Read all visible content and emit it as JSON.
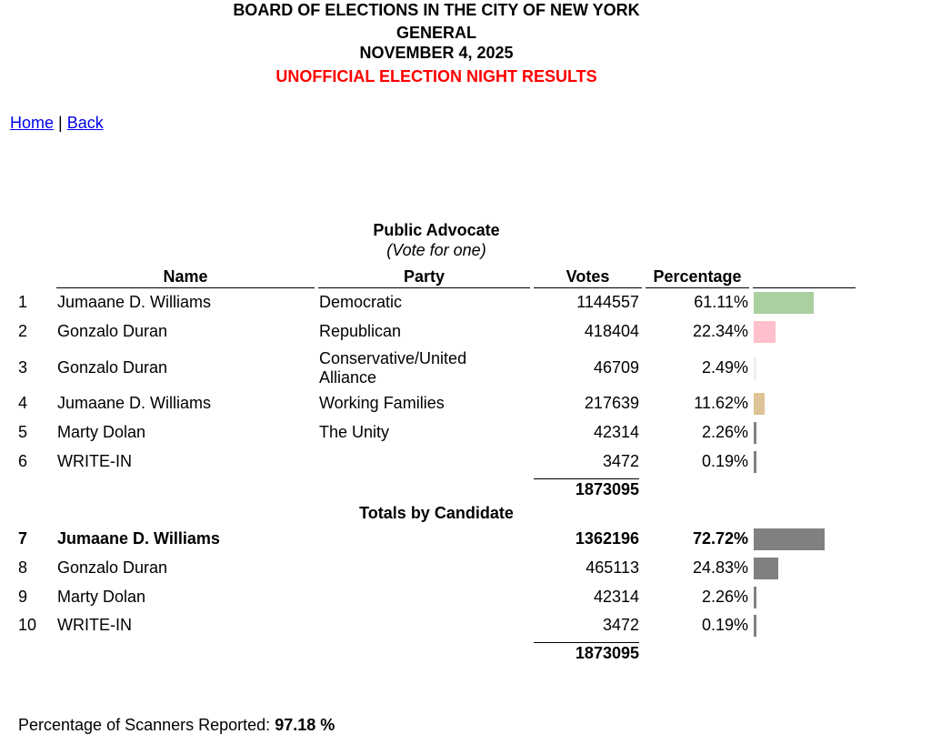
{
  "header": {
    "line1": "BOARD OF ELECTIONS IN THE CITY OF NEW YORK",
    "line2": "GENERAL",
    "line3": "NOVEMBER 4, 2025",
    "line4": "UNOFFICIAL ELECTION NIGHT RESULTS",
    "warning_color": "#ff0000"
  },
  "nav": {
    "home": "Home",
    "separator": "|",
    "back": "Back"
  },
  "contest": {
    "title": "Public Advocate",
    "subtitle": "(Vote for one)",
    "columns": {
      "name": "Name",
      "party": "Party",
      "votes": "Votes",
      "percentage": "Percentage"
    },
    "rows": [
      {
        "num": "1",
        "name": "Jumaane D. Williams",
        "party": "Democratic",
        "votes": "1144557",
        "pct": "61.11%",
        "pct_value": 61.11,
        "bar_color": "#a9d09e"
      },
      {
        "num": "2",
        "name": "Gonzalo Duran",
        "party": "Republican",
        "votes": "418404",
        "pct": "22.34%",
        "pct_value": 22.34,
        "bar_color": "#ffc0cb"
      },
      {
        "num": "3",
        "name": "Gonzalo Duran",
        "party": "Conservative/United Alliance",
        "votes": "46709",
        "pct": "2.49%",
        "pct_value": 2.49,
        "bar_color": "#eeeeee"
      },
      {
        "num": "4",
        "name": "Jumaane D. Williams",
        "party": "Working Families",
        "votes": "217639",
        "pct": "11.62%",
        "pct_value": 11.62,
        "bar_color": "#dec396"
      },
      {
        "num": "5",
        "name": "Marty Dolan",
        "party": "The Unity",
        "votes": "42314",
        "pct": "2.26%",
        "pct_value": 2.26,
        "bar_color": "#808080"
      },
      {
        "num": "6",
        "name": "WRITE-IN",
        "party": "",
        "votes": "3472",
        "pct": "0.19%",
        "pct_value": 0.19,
        "bar_color": "#808080"
      }
    ],
    "total": "1873095",
    "totals_title": "Totals by Candidate",
    "totals_rows": [
      {
        "num": "7",
        "name": "Jumaane D. Williams",
        "votes": "1362196",
        "pct": "72.72%",
        "pct_value": 72.72,
        "bar_color": "#808080",
        "bold": true
      },
      {
        "num": "8",
        "name": "Gonzalo Duran",
        "votes": "465113",
        "pct": "24.83%",
        "pct_value": 24.83,
        "bar_color": "#808080"
      },
      {
        "num": "9",
        "name": "Marty Dolan",
        "votes": "42314",
        "pct": "2.26%",
        "pct_value": 2.26,
        "bar_color": "#808080"
      },
      {
        "num": "10",
        "name": "WRITE-IN",
        "votes": "3472",
        "pct": "0.19%",
        "pct_value": 0.19,
        "bar_color": "#808080"
      }
    ],
    "totals_total": "1873095"
  },
  "footer": {
    "label": "Percentage of Scanners Reported:",
    "value": "97.18 %"
  }
}
